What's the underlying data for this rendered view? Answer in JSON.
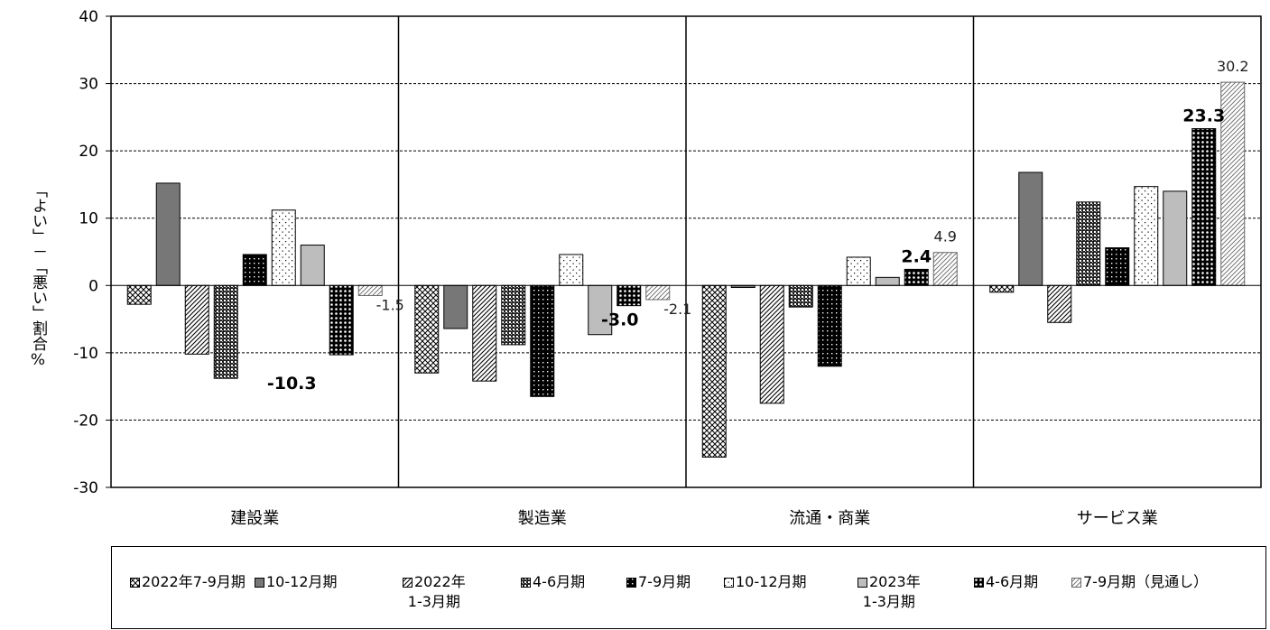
{
  "chart_data": {
    "type": "bar",
    "title": "",
    "ylabel": "「よい」－「悪い」割合%",
    "ylim": [
      -30,
      40
    ],
    "yticks": [
      -30,
      -20,
      -10,
      0,
      10,
      20,
      30,
      40
    ],
    "ytick_labels": [
      "-30",
      "-20",
      "-10",
      "0",
      "10",
      "20",
      "30",
      "40"
    ],
    "grid": true,
    "legend_position": "bottom",
    "categories": [
      "建設業",
      "製造業",
      "流通・商業",
      "サービス業"
    ],
    "series": [
      {
        "name": "2022年7-9月期",
        "values": [
          -2.8,
          -13.0,
          -25.5,
          -1.0
        ]
      },
      {
        "name": "10-12月期",
        "values": [
          15.2,
          -6.4,
          -0.3,
          16.8
        ]
      },
      {
        "name": "2022年1-3月期",
        "values": [
          -10.2,
          -14.2,
          -17.5,
          -5.5
        ]
      },
      {
        "name": "4-6月期",
        "values": [
          -13.8,
          -8.8,
          -3.2,
          12.4
        ]
      },
      {
        "name": "7-9月期",
        "values": [
          4.6,
          -16.5,
          -12.0,
          5.6
        ]
      },
      {
        "name": "10-12月期",
        "values": [
          11.2,
          4.6,
          4.2,
          14.7
        ]
      },
      {
        "name": "2023年1-3月期",
        "values": [
          6.0,
          -7.3,
          1.2,
          14.0
        ]
      },
      {
        "name": "4-6月期",
        "values": [
          -10.3,
          -3.0,
          2.4,
          23.3
        ]
      },
      {
        "name": "7-9月期（見通し）",
        "values": [
          -1.5,
          -2.1,
          4.9,
          30.2
        ]
      }
    ],
    "data_labels": [
      {
        "category": "建設業",
        "series": 7,
        "text": "-10.3",
        "bold": true
      },
      {
        "category": "建設業",
        "series": 8,
        "text": "-1.5",
        "bold": false
      },
      {
        "category": "製造業",
        "series": 7,
        "text": "-3.0",
        "bold": true
      },
      {
        "category": "製造業",
        "series": 8,
        "text": "-2.1",
        "bold": false
      },
      {
        "category": "流通・商業",
        "series": 7,
        "text": "2.4",
        "bold": true
      },
      {
        "category": "流通・商業",
        "series": 8,
        "text": "4.9",
        "bold": false
      },
      {
        "category": "サービス業",
        "series": 7,
        "text": "23.3",
        "bold": true
      },
      {
        "category": "サービス業",
        "series": 8,
        "text": "30.2",
        "bold": false
      }
    ]
  },
  "legend": {
    "items": [
      {
        "line1": "2022年7-9月期",
        "line2": ""
      },
      {
        "line1": "10-12月期",
        "line2": ""
      },
      {
        "line1": "2022年",
        "line2": "1-3月期"
      },
      {
        "line1": "4-6月期",
        "line2": ""
      },
      {
        "line1": "7-9月期",
        "line2": ""
      },
      {
        "line1": "10-12月期",
        "line2": ""
      },
      {
        "line1": "2023年",
        "line2": "1-3月期"
      },
      {
        "line1": "4-6月期",
        "line2": ""
      },
      {
        "line1": "7-9月期（見通し）",
        "line2": ""
      }
    ]
  }
}
